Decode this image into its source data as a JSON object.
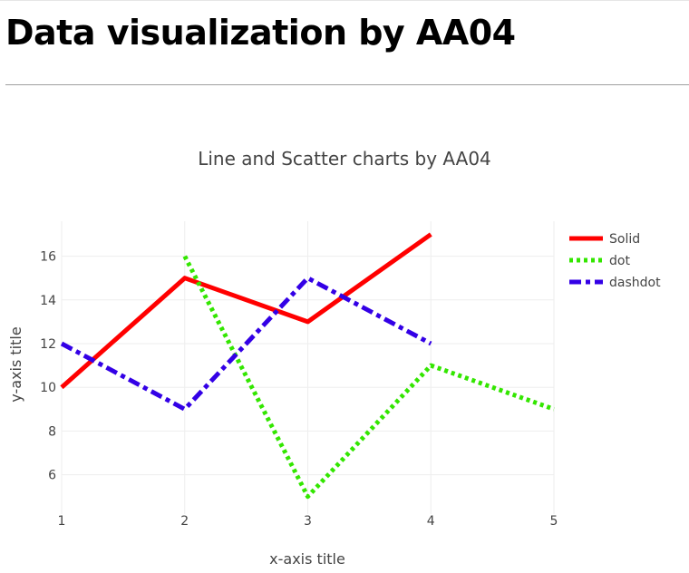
{
  "page": {
    "heading": "Data visualization by AA04"
  },
  "chart_data": {
    "type": "line",
    "title": "Line and Scatter charts by AA04",
    "xlabel": "x-axis title",
    "ylabel": "y-axis title",
    "x_ticks": [
      1,
      2,
      3,
      4,
      5
    ],
    "y_ticks": [
      6,
      8,
      10,
      12,
      14,
      16
    ],
    "xlim": [
      1,
      5
    ],
    "ylim": [
      4.2,
      17.6
    ],
    "grid": true,
    "legend_position": "top-right",
    "series": [
      {
        "name": "Solid",
        "x": [
          1,
          2,
          3,
          4
        ],
        "y": [
          10,
          15,
          13,
          17
        ],
        "color": "#ff0000",
        "dash": "solid"
      },
      {
        "name": "dot",
        "x": [
          2,
          3,
          4,
          5
        ],
        "y": [
          16,
          5,
          11,
          9
        ],
        "color": "#33e600",
        "dash": "dot"
      },
      {
        "name": "dashdot",
        "x": [
          1,
          2,
          3,
          4
        ],
        "y": [
          12,
          9,
          15,
          12
        ],
        "color": "#3300e6",
        "dash": "dashdot"
      }
    ]
  }
}
